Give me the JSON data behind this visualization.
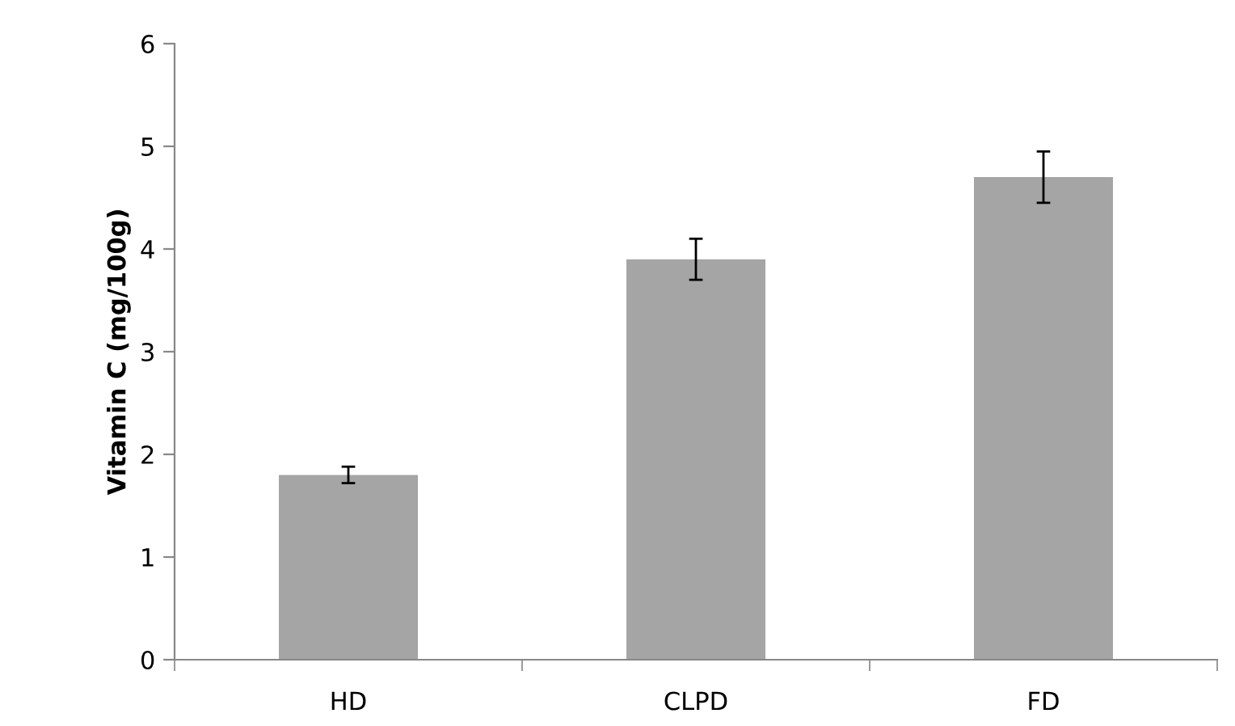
{
  "chart_data": {
    "type": "bar",
    "ylabel": "Vitamin C (mg/100g)",
    "categories": [
      "HD",
      "CLPD",
      "FD"
    ],
    "values": [
      1.8,
      3.9,
      4.7
    ],
    "errors": [
      0.08,
      0.2,
      0.25
    ],
    "color": "#a5a5a5",
    "ylim": [
      0,
      6
    ],
    "yticks": [
      0,
      1,
      2,
      3,
      4,
      5,
      6
    ],
    "grid": false
  }
}
